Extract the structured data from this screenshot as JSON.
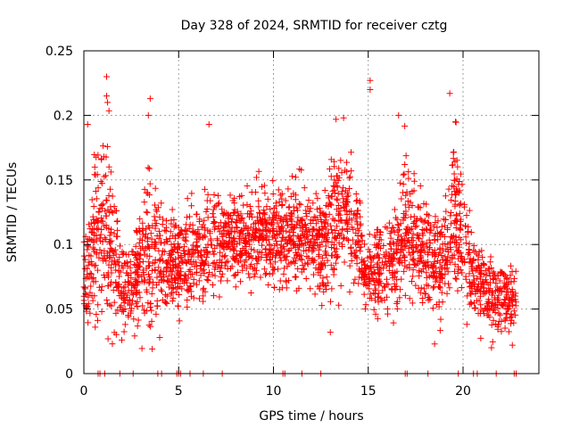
{
  "chart_data": {
    "type": "scatter",
    "title": "Day 328 of 2024, SRMTID for receiver cztg",
    "xlabel": "GPS time / hours",
    "ylabel": "SRMTID / TECUs",
    "xlim": [
      0,
      24
    ],
    "ylim": [
      0,
      0.25
    ],
    "x_ticks": [
      0,
      5,
      10,
      15,
      20
    ],
    "x_tick_labels": [
      "0",
      "5",
      "10",
      "15",
      "20"
    ],
    "y_ticks": [
      0,
      0.05,
      0.1,
      0.15,
      0.2,
      0.25
    ],
    "y_tick_labels": [
      "0",
      "0.05",
      "0.1",
      "0.15",
      "0.2",
      "0.25"
    ],
    "grid": true,
    "marker": "plus",
    "series": [
      {
        "name": "SRMTID",
        "color": "#ff0000",
        "marker": "plus",
        "x_range": [
          0,
          22.8
        ],
        "profile": [
          {
            "t": 0.0,
            "center": 0.075,
            "spread": 0.02
          },
          {
            "t": 0.3,
            "center": 0.09,
            "spread": 0.03
          },
          {
            "t": 0.7,
            "center": 0.11,
            "spread": 0.04
          },
          {
            "t": 1.2,
            "center": 0.11,
            "spread": 0.05
          },
          {
            "t": 2.0,
            "center": 0.07,
            "spread": 0.02
          },
          {
            "t": 2.6,
            "center": 0.065,
            "spread": 0.02
          },
          {
            "t": 3.3,
            "center": 0.095,
            "spread": 0.04
          },
          {
            "t": 4.2,
            "center": 0.085,
            "spread": 0.025
          },
          {
            "t": 5.5,
            "center": 0.09,
            "spread": 0.025
          },
          {
            "t": 6.5,
            "center": 0.1,
            "spread": 0.03
          },
          {
            "t": 8.0,
            "center": 0.105,
            "spread": 0.02
          },
          {
            "t": 9.5,
            "center": 0.105,
            "spread": 0.025
          },
          {
            "t": 11.0,
            "center": 0.11,
            "spread": 0.025
          },
          {
            "t": 12.5,
            "center": 0.1,
            "spread": 0.025
          },
          {
            "t": 13.3,
            "center": 0.12,
            "spread": 0.035
          },
          {
            "t": 14.3,
            "center": 0.12,
            "spread": 0.03
          },
          {
            "t": 14.8,
            "center": 0.075,
            "spread": 0.015
          },
          {
            "t": 15.5,
            "center": 0.085,
            "spread": 0.025
          },
          {
            "t": 16.5,
            "center": 0.085,
            "spread": 0.025
          },
          {
            "t": 17.0,
            "center": 0.12,
            "spread": 0.035
          },
          {
            "t": 18.0,
            "center": 0.09,
            "spread": 0.025
          },
          {
            "t": 19.0,
            "center": 0.085,
            "spread": 0.03
          },
          {
            "t": 19.5,
            "center": 0.13,
            "spread": 0.04
          },
          {
            "t": 20.5,
            "center": 0.075,
            "spread": 0.025
          },
          {
            "t": 21.5,
            "center": 0.06,
            "spread": 0.02
          },
          {
            "t": 22.8,
            "center": 0.055,
            "spread": 0.015
          }
        ],
        "outliers": [
          {
            "x": 1.2,
            "y": 0.23
          },
          {
            "x": 1.2,
            "y": 0.215
          },
          {
            "x": 1.25,
            "y": 0.21
          },
          {
            "x": 3.5,
            "y": 0.213
          },
          {
            "x": 3.4,
            "y": 0.2
          },
          {
            "x": 15.1,
            "y": 0.227
          },
          {
            "x": 15.1,
            "y": 0.22
          },
          {
            "x": 19.3,
            "y": 0.217
          },
          {
            "x": 19.6,
            "y": 0.195
          },
          {
            "x": 16.6,
            "y": 0.2
          },
          {
            "x": 0.2,
            "y": 0.193
          },
          {
            "x": 6.6,
            "y": 0.193
          },
          {
            "x": 13.7,
            "y": 0.198
          },
          {
            "x": 13.3,
            "y": 0.197
          },
          {
            "x": 0.6,
            "y": 0.036
          },
          {
            "x": 2.0,
            "y": 0.026
          },
          {
            "x": 4.0,
            "y": 0.028
          },
          {
            "x": 18.5,
            "y": 0.023
          },
          {
            "x": 21.5,
            "y": 0.02
          },
          {
            "x": 22.6,
            "y": 0.022
          },
          {
            "x": 13.0,
            "y": 0.032
          }
        ],
        "zero_x": [
          0.75,
          0.85,
          1.1,
          1.9,
          2.6,
          3.9,
          4.1,
          4.9,
          5.0,
          5.1,
          5.6,
          6.3,
          7.3,
          10.5,
          10.6,
          11.5,
          12.5,
          16.95,
          17.05,
          18.15,
          19.75,
          20.55,
          20.75,
          21.75,
          22.7,
          22.8
        ]
      }
    ]
  }
}
